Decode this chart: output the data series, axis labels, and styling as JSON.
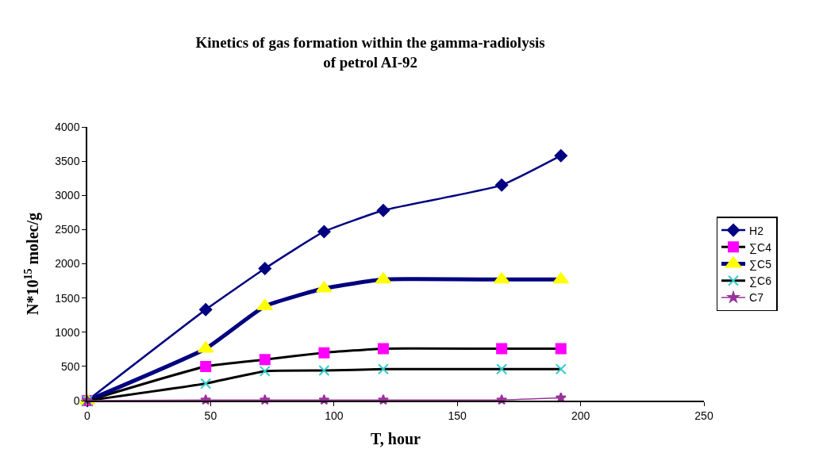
{
  "chart_data": {
    "type": "line",
    "title": "Kinetics of gas formation within the gamma-radiolysis\nof petrol AI-92",
    "xlabel": "T, hour",
    "ylabel": "N*10$^{15}$ molec/g",
    "x": [
      0,
      48,
      72,
      96,
      120,
      168,
      192
    ],
    "series": [
      {
        "name": "H2",
        "color": "#000080",
        "marker": "diamond",
        "values": [
          0,
          1330,
          1930,
          2470,
          2780,
          3150,
          3580
        ]
      },
      {
        "name": "∑C4",
        "color": "#000000",
        "colors": [
          "#ff00ff",
          "#ff00ff",
          "#ff00ff",
          "#ff00ff",
          "#ff00ff",
          "#ff00ff",
          "#ff00ff"
        ],
        "marker": "square",
        "values": [
          0,
          500,
          600,
          700,
          760,
          760,
          760
        ]
      },
      {
        "name": "∑C5",
        "color": "#000080",
        "colors": [
          "#ffff00",
          "#ffff00",
          "#ffff00",
          "#ffff00",
          "#ffff00",
          "#ffff00",
          "#ffff00"
        ],
        "marker": "triangle",
        "values": [
          0,
          760,
          1380,
          1640,
          1770,
          1770,
          1770
        ]
      },
      {
        "name": "∑C6",
        "color": "#000000",
        "colors": [
          "#33cccc",
          "#33cccc",
          "#33cccc",
          "#33cccc",
          "#33cccc",
          "#33cccc",
          "#33cccc"
        ],
        "marker": "cross",
        "values": [
          0,
          250,
          430,
          440,
          460,
          460,
          460
        ]
      },
      {
        "name": "C7",
        "color": "#993399",
        "marker": "star",
        "values": [
          0,
          10,
          10,
          10,
          10,
          10,
          40
        ]
      }
    ],
    "xlim": [
      0,
      250
    ],
    "xticks": [
      0,
      50,
      100,
      150,
      200,
      250
    ],
    "ylim": [
      0,
      4000
    ],
    "yticks": [
      0,
      500,
      1000,
      1500,
      2000,
      2500,
      3000,
      3500,
      4000
    ],
    "legend": "right",
    "line_style": "solid"
  }
}
